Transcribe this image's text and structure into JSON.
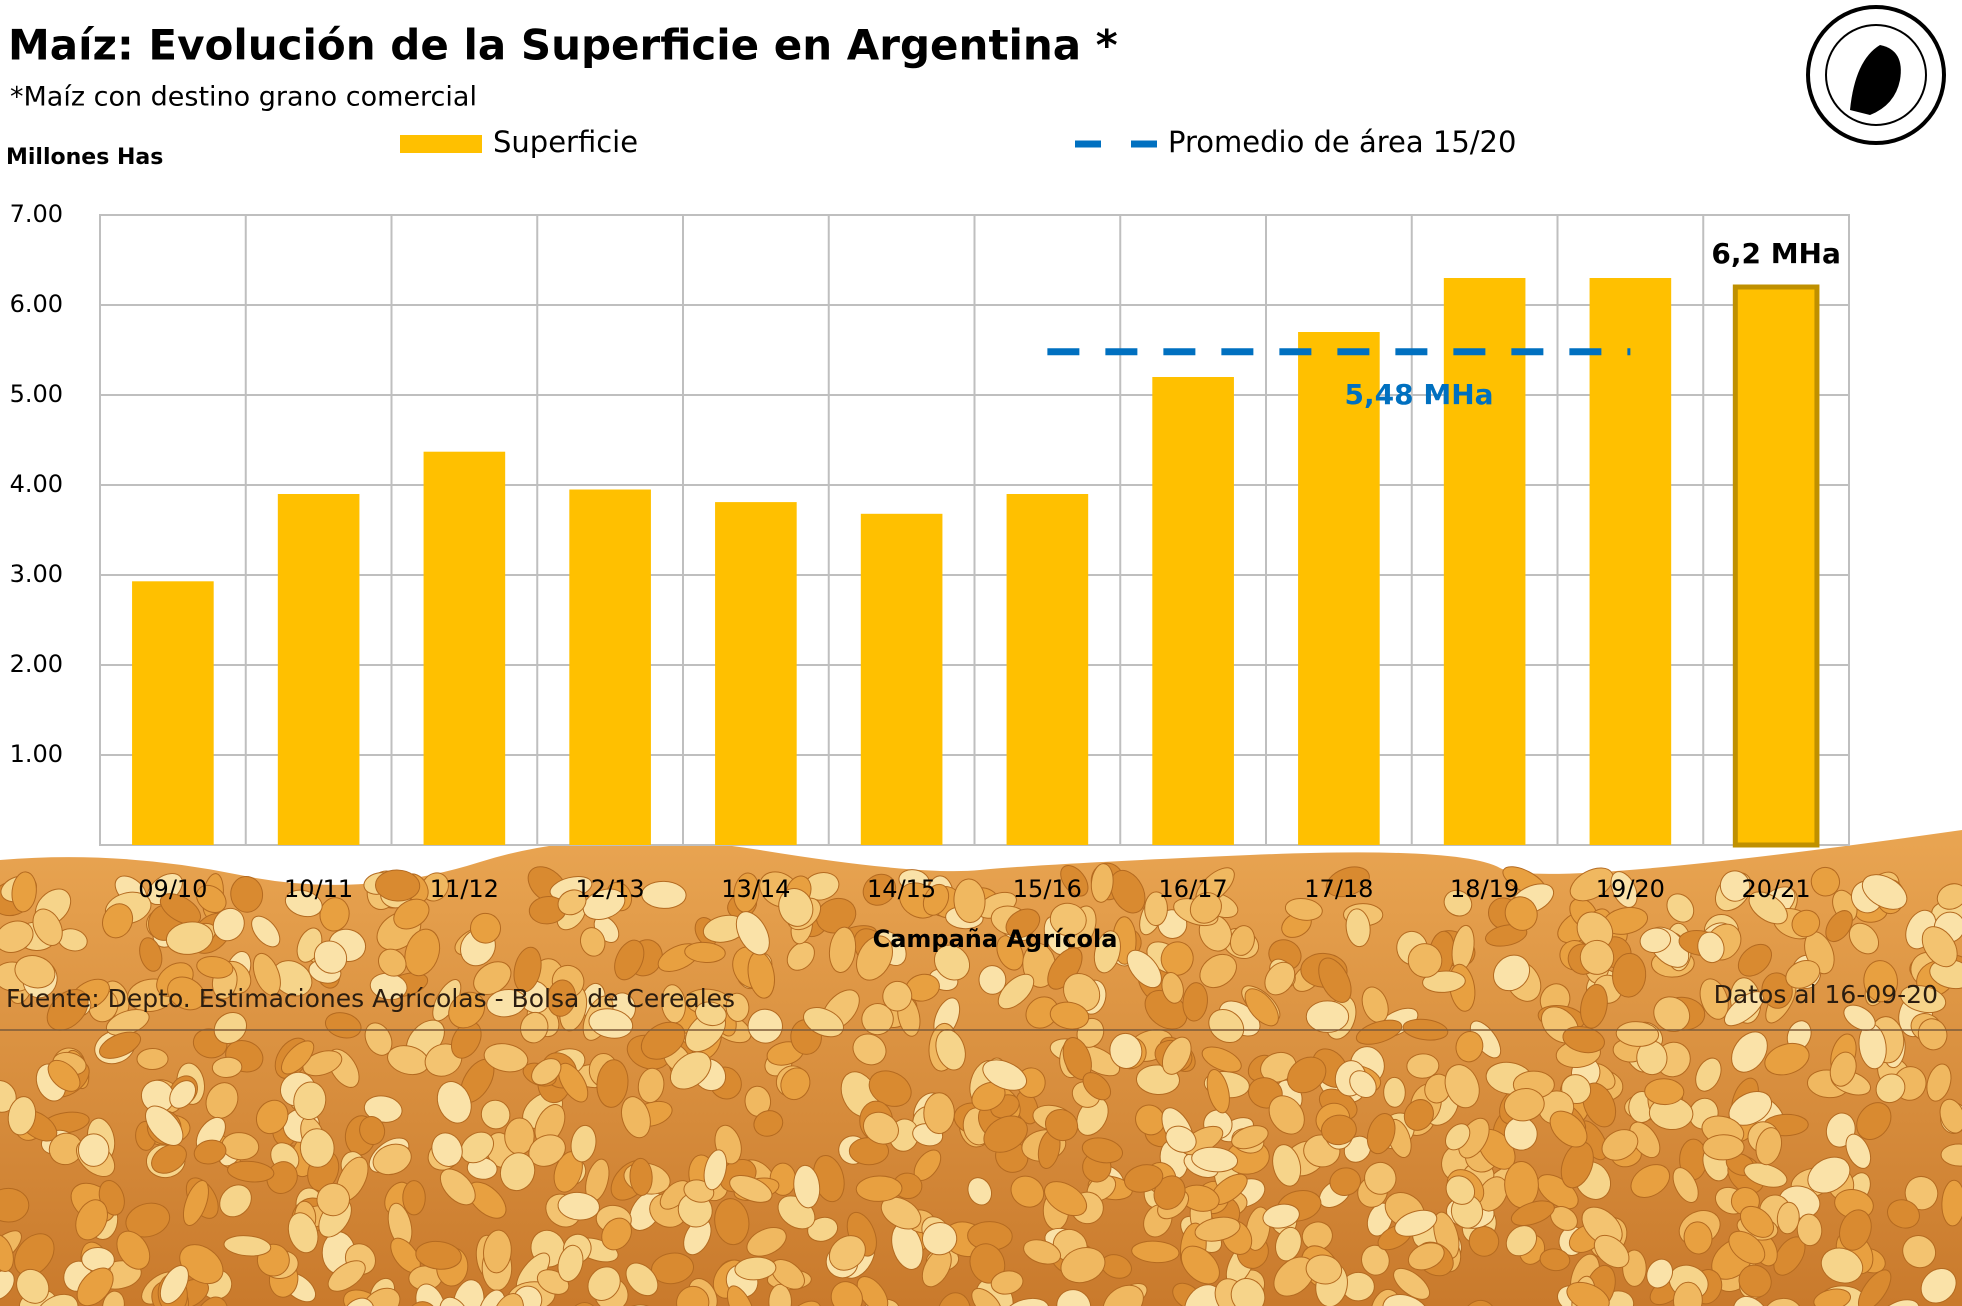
{
  "chart_data": {
    "type": "bar",
    "title": "Maíz: Evolución de la Superficie en Argentina *",
    "subtitle": "*Maíz con destino grano comercial",
    "y_axis_label": "Millones Has",
    "x_axis_label": "Campaña Agrícola",
    "source": "Fuente: Depto. Estimaciones Agrícolas - Bolsa de Cereales",
    "date_note": "Datos al 16-09-20",
    "categories": [
      "09/10",
      "10/11",
      "11/12",
      "12/13",
      "13/14",
      "14/15",
      "15/16",
      "16/17",
      "17/18",
      "18/19",
      "19/20",
      "20/21"
    ],
    "series": [
      {
        "name": "Superficie",
        "type": "bar",
        "color": "#ffc000",
        "values": [
          2.93,
          3.9,
          4.37,
          3.95,
          3.81,
          3.68,
          3.9,
          5.2,
          5.7,
          6.3,
          6.3,
          6.2
        ],
        "value_labels": [
          null,
          null,
          null,
          null,
          null,
          null,
          null,
          null,
          null,
          null,
          null,
          "6,2 MHa"
        ]
      },
      {
        "name": "Promedio de área 15/20",
        "type": "line",
        "color": "#0070c0",
        "values": [
          null,
          null,
          null,
          null,
          null,
          null,
          5.48,
          5.48,
          5.48,
          5.48,
          5.48,
          null
        ],
        "value_labels": [
          null,
          null,
          null,
          null,
          null,
          null,
          null,
          null,
          "5,48 MHa",
          null,
          null,
          null
        ]
      }
    ],
    "ylim": [
      0,
      7
    ],
    "yticks": [
      {
        "value": 1,
        "label": "1.00"
      },
      {
        "value": 2,
        "label": "2.00"
      },
      {
        "value": 3,
        "label": "3.00"
      },
      {
        "value": 4,
        "label": "4.00"
      },
      {
        "value": 5,
        "label": "5.00"
      },
      {
        "value": 6,
        "label": "6.00"
      },
      {
        "value": 7,
        "label": "7.00"
      }
    ],
    "grid": true
  }
}
